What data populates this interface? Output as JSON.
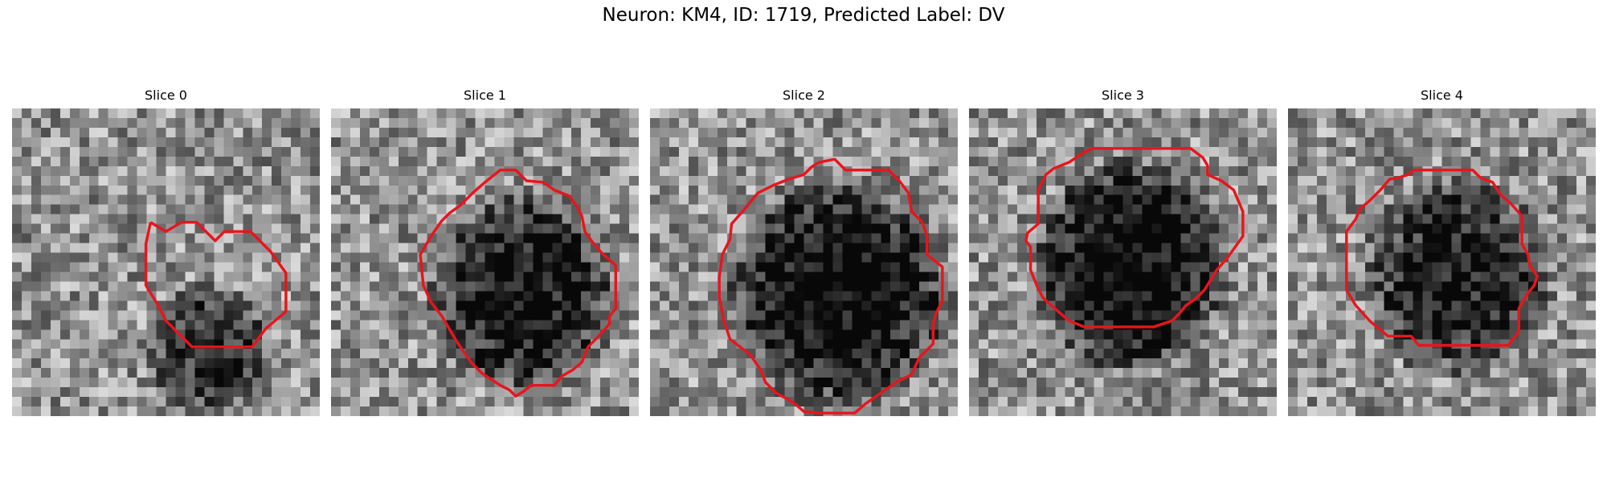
{
  "title": "Neuron: KM4, ID: 1719, Predicted Label: DV",
  "colormap": "gray",
  "contour_color": "#e8151c",
  "panels": [
    {
      "title": "Slice 0",
      "cell": {
        "cx": 12.8,
        "cy": 15.8,
        "rx": 4.5,
        "ry": 4.8,
        "depth": 0.42
      },
      "contour": [
        [
          9.0,
          7.4
        ],
        [
          10.0,
          8.0
        ],
        [
          11.0,
          7.4
        ],
        [
          12.0,
          7.4
        ],
        [
          12.7,
          8.1
        ],
        [
          13.2,
          8.6
        ],
        [
          13.8,
          8.0
        ],
        [
          15.5,
          8.0
        ],
        [
          16.8,
          9.3
        ],
        [
          17.8,
          10.7
        ],
        [
          17.8,
          13.2
        ],
        [
          16.5,
          14.3
        ],
        [
          15.6,
          15.5
        ],
        [
          11.7,
          15.5
        ],
        [
          10.0,
          13.8
        ],
        [
          9.5,
          12.8
        ],
        [
          8.7,
          11.5
        ],
        [
          8.7,
          8.8
        ],
        [
          9.0,
          7.4
        ]
      ]
    },
    {
      "title": "Slice 1",
      "cell": {
        "cx": 12.5,
        "cy": 12.0,
        "rx": 6.5,
        "ry": 7.0,
        "depth": 0.55
      },
      "contour": [
        [
          10.0,
          4.8
        ],
        [
          11.0,
          4.0
        ],
        [
          12.0,
          4.0
        ],
        [
          12.7,
          4.7
        ],
        [
          13.8,
          4.8
        ],
        [
          14.5,
          5.3
        ],
        [
          15.5,
          5.7
        ],
        [
          16.0,
          6.4
        ],
        [
          16.3,
          7.0
        ],
        [
          16.5,
          8.0
        ],
        [
          17.0,
          8.7
        ],
        [
          17.6,
          9.4
        ],
        [
          18.5,
          10.2
        ],
        [
          18.5,
          13.0
        ],
        [
          18.1,
          13.5
        ],
        [
          18.1,
          14.0
        ],
        [
          17.4,
          14.8
        ],
        [
          16.7,
          15.5
        ],
        [
          16.3,
          16.5
        ],
        [
          15.7,
          17.0
        ],
        [
          15.0,
          17.4
        ],
        [
          14.5,
          18.0
        ],
        [
          13.0,
          18.0
        ],
        [
          12.5,
          18.4
        ],
        [
          12.0,
          18.7
        ],
        [
          11.6,
          18.3
        ],
        [
          11.0,
          18.0
        ],
        [
          9.8,
          17.2
        ],
        [
          9.1,
          16.5
        ],
        [
          8.2,
          15.2
        ],
        [
          7.2,
          13.5
        ],
        [
          6.5,
          12.6
        ],
        [
          6.0,
          11.5
        ],
        [
          5.8,
          9.5
        ],
        [
          6.5,
          8.3
        ],
        [
          7.2,
          7.3
        ],
        [
          7.7,
          6.8
        ],
        [
          8.4,
          6.3
        ],
        [
          9.2,
          5.5
        ],
        [
          10.0,
          4.8
        ]
      ]
    },
    {
      "title": "Slice 2",
      "cell": {
        "cx": 12.3,
        "cy": 12.0,
        "rx": 7.8,
        "ry": 8.0,
        "depth": 0.6
      },
      "contour": [
        [
          8.0,
          5.0
        ],
        [
          9.0,
          4.6
        ],
        [
          10.0,
          4.3
        ],
        [
          10.5,
          3.8
        ],
        [
          11.0,
          3.5
        ],
        [
          12.0,
          3.3
        ],
        [
          12.7,
          4.0
        ],
        [
          15.5,
          4.0
        ],
        [
          16.2,
          4.7
        ],
        [
          16.8,
          5.5
        ],
        [
          17.0,
          6.7
        ],
        [
          17.7,
          7.4
        ],
        [
          18.0,
          8.3
        ],
        [
          18.0,
          9.5
        ],
        [
          19.0,
          10.3
        ],
        [
          19.0,
          12.5
        ],
        [
          18.6,
          13.3
        ],
        [
          18.4,
          14.0
        ],
        [
          18.4,
          15.3
        ],
        [
          17.5,
          16.2
        ],
        [
          17.0,
          17.3
        ],
        [
          16.0,
          17.8
        ],
        [
          15.0,
          18.5
        ],
        [
          14.0,
          19.2
        ],
        [
          13.3,
          19.8
        ],
        [
          11.0,
          19.8
        ],
        [
          10.0,
          19.7
        ],
        [
          9.3,
          19.1
        ],
        [
          8.2,
          18.5
        ],
        [
          7.5,
          17.8
        ],
        [
          7.2,
          17.0
        ],
        [
          6.5,
          16.0
        ],
        [
          5.2,
          15.0
        ],
        [
          4.8,
          13.8
        ],
        [
          4.5,
          12.3
        ],
        [
          4.5,
          11.0
        ],
        [
          4.7,
          9.5
        ],
        [
          5.2,
          8.5
        ],
        [
          5.3,
          7.5
        ],
        [
          6.1,
          6.6
        ],
        [
          7.0,
          5.5
        ],
        [
          8.0,
          5.0
        ]
      ]
    },
    {
      "title": "Slice 3",
      "cell": {
        "cx": 10.5,
        "cy": 10.3,
        "rx": 6.8,
        "ry": 7.5,
        "depth": 0.62
      },
      "contour": [
        [
          7.4,
          2.9
        ],
        [
          8.0,
          2.6
        ],
        [
          14.4,
          2.6
        ],
        [
          15.2,
          3.2
        ],
        [
          15.5,
          3.7
        ],
        [
          15.5,
          4.3
        ],
        [
          16.4,
          4.7
        ],
        [
          17.2,
          5.3
        ],
        [
          17.8,
          6.7
        ],
        [
          17.8,
          8.3
        ],
        [
          16.8,
          9.7
        ],
        [
          16.1,
          10.5
        ],
        [
          15.3,
          11.8
        ],
        [
          14.7,
          12.4
        ],
        [
          14.1,
          12.8
        ],
        [
          13.7,
          13.3
        ],
        [
          13.2,
          13.8
        ],
        [
          12.0,
          14.2
        ],
        [
          7.5,
          14.2
        ],
        [
          6.5,
          13.8
        ],
        [
          5.8,
          13.2
        ],
        [
          4.8,
          12.3
        ],
        [
          4.4,
          11.5
        ],
        [
          4.0,
          10.5
        ],
        [
          4.0,
          9.0
        ],
        [
          3.7,
          8.6
        ],
        [
          3.8,
          8.1
        ],
        [
          4.5,
          7.5
        ],
        [
          4.5,
          5.3
        ],
        [
          5.0,
          4.3
        ],
        [
          5.5,
          3.9
        ],
        [
          6.5,
          3.5
        ],
        [
          7.4,
          2.9
        ]
      ]
    },
    {
      "title": "Slice 4",
      "cell": {
        "cx": 11.0,
        "cy": 11.0,
        "rx": 6.5,
        "ry": 7.0,
        "depth": 0.5
      },
      "contour": [
        [
          7.2,
          4.5
        ],
        [
          7.8,
          4.3
        ],
        [
          8.2,
          4.0
        ],
        [
          12.0,
          4.0
        ],
        [
          12.5,
          4.5
        ],
        [
          13.3,
          4.8
        ],
        [
          13.8,
          5.6
        ],
        [
          14.5,
          6.2
        ],
        [
          15.2,
          7.0
        ],
        [
          15.2,
          8.8
        ],
        [
          15.6,
          9.5
        ],
        [
          15.7,
          10.2
        ],
        [
          16.2,
          10.9
        ],
        [
          16.0,
          11.5
        ],
        [
          15.6,
          12.0
        ],
        [
          15.0,
          13.0
        ],
        [
          15.0,
          14.5
        ],
        [
          14.3,
          15.4
        ],
        [
          13.3,
          15.4
        ],
        [
          8.5,
          15.4
        ],
        [
          8.0,
          14.8
        ],
        [
          6.5,
          14.8
        ],
        [
          5.3,
          13.8
        ],
        [
          4.4,
          12.8
        ],
        [
          3.8,
          11.8
        ],
        [
          3.8,
          8.0
        ],
        [
          4.4,
          7.2
        ],
        [
          4.7,
          6.5
        ],
        [
          5.3,
          6.0
        ],
        [
          6.0,
          5.3
        ],
        [
          6.6,
          4.6
        ],
        [
          7.2,
          4.5
        ]
      ]
    }
  ]
}
